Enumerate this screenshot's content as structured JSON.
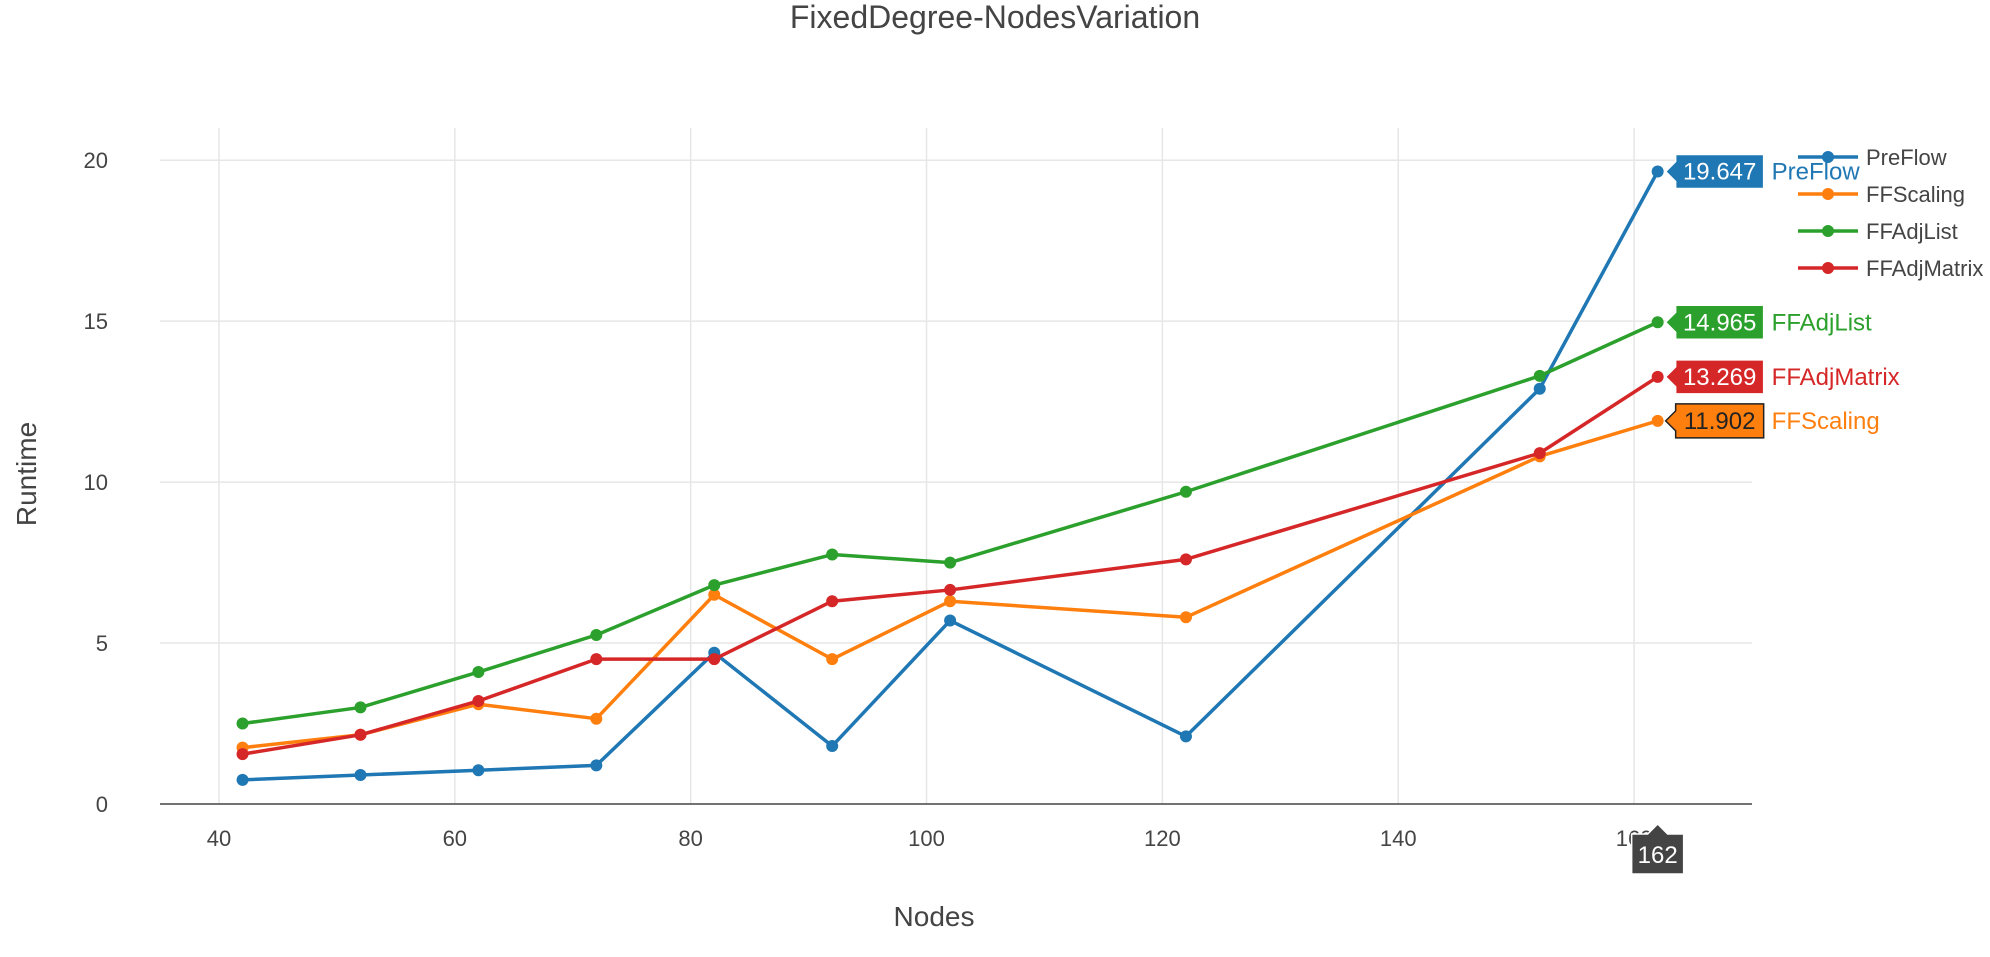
{
  "chart_data": {
    "type": "line",
    "title": "FixedDegree-NodesVariation",
    "xlabel": "Nodes",
    "ylabel": "Runtime",
    "xlim": [
      35,
      170
    ],
    "ylim": [
      0,
      21
    ],
    "x_ticks": [
      40,
      60,
      80,
      100,
      120,
      140,
      160
    ],
    "y_ticks": [
      0,
      5,
      10,
      15,
      20
    ],
    "grid": true,
    "legend": "top-right",
    "x": [
      42,
      52,
      62,
      72,
      82,
      92,
      102,
      122,
      152,
      162
    ],
    "series": [
      {
        "name": "PreFlow",
        "color": "#1f77b4",
        "values": [
          0.75,
          0.9,
          1.05,
          1.2,
          4.7,
          1.8,
          5.7,
          2.1,
          12.9,
          19.647
        ]
      },
      {
        "name": "FFScaling",
        "color": "#ff7f0e",
        "values": [
          1.75,
          2.15,
          3.1,
          2.65,
          6.5,
          4.5,
          6.3,
          5.8,
          10.8,
          11.902
        ]
      },
      {
        "name": "FFAdjList",
        "color": "#2ca02c",
        "values": [
          2.5,
          3.0,
          4.1,
          5.25,
          6.8,
          7.75,
          7.5,
          9.7,
          13.3,
          14.965
        ]
      },
      {
        "name": "FFAdjMatrix",
        "color": "#d62728",
        "values": [
          1.55,
          2.15,
          3.2,
          4.5,
          4.5,
          6.3,
          6.65,
          7.6,
          10.9,
          13.269
        ]
      }
    ],
    "hover": {
      "x_label": "162",
      "labels": [
        {
          "series": "PreFlow",
          "value": "19.647"
        },
        {
          "series": "FFAdjList",
          "value": "14.965"
        },
        {
          "series": "FFAdjMatrix",
          "value": "13.269"
        },
        {
          "series": "FFScaling",
          "value": "11.902"
        }
      ]
    }
  }
}
